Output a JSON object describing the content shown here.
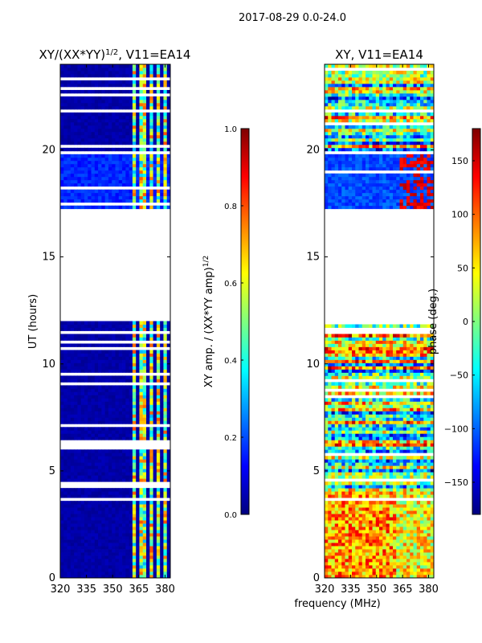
{
  "figure": {
    "suptitle": "2017-08-29 0.0-24.0",
    "shared_xlabel": "frequency (MHz)"
  },
  "colors": {
    "jet": [
      "#00007f",
      "#0000ff",
      "#007fff",
      "#00ffff",
      "#7fff7f",
      "#ffff00",
      "#ff7f00",
      "#ff0000",
      "#7f0000"
    ],
    "background": "#ffffff",
    "axes": "#000000"
  },
  "chart_data": [
    {
      "type": "heatmap",
      "panel": "amplitude",
      "title_prefix": "XY/(XX*YY)",
      "title_exp": "1/2",
      "title_suffix": ", V11=EA14",
      "xlabel": "",
      "ylabel": "UT (hours)",
      "xlim": [
        320,
        383
      ],
      "ylim": [
        0,
        24
      ],
      "xticks": [
        320,
        335,
        350,
        365,
        380
      ],
      "yticks": [
        0,
        5,
        10,
        15,
        20
      ],
      "gaps_hours": [
        [
          12.0,
          17.2
        ],
        [
          19.75,
          20.0
        ],
        [
          3.55,
          3.7
        ]
      ],
      "rfi_bands_mhz": [
        [
          361,
          364
        ],
        [
          366,
          369
        ],
        [
          371,
          373
        ],
        [
          376,
          378
        ],
        [
          379,
          380.5
        ]
      ],
      "colorbar": {
        "label_prefix": "XY amp. / (XX*YY amp)",
        "label_exp": "1/2",
        "range": [
          0.0,
          1.0
        ],
        "ticks": [
          "0.0",
          "0.2",
          "0.4",
          "0.6",
          "0.8",
          "1.0"
        ],
        "tick_values": [
          0.0,
          0.2,
          0.4,
          0.6,
          0.8,
          1.0
        ]
      }
    },
    {
      "type": "heatmap",
      "panel": "phase",
      "title": "XY, V11=EA14",
      "xlabel": "",
      "ylabel": "",
      "xlim": [
        320,
        383
      ],
      "ylim": [
        0,
        24
      ],
      "xticks": [
        320,
        335,
        350,
        365,
        380
      ],
      "yticks": [
        0,
        5,
        10,
        15,
        20
      ],
      "gaps_hours": [
        [
          12.0,
          17.2
        ],
        [
          19.75,
          20.0
        ],
        [
          3.55,
          3.7
        ]
      ],
      "colorbar": {
        "label": "phase (deg.)",
        "range": [
          -180,
          180
        ],
        "ticks": [
          "−150",
          "−100",
          "−50",
          "0",
          "50",
          "100",
          "150"
        ],
        "tick_values": [
          -150,
          -100,
          -50,
          0,
          50,
          100,
          150
        ]
      }
    }
  ]
}
